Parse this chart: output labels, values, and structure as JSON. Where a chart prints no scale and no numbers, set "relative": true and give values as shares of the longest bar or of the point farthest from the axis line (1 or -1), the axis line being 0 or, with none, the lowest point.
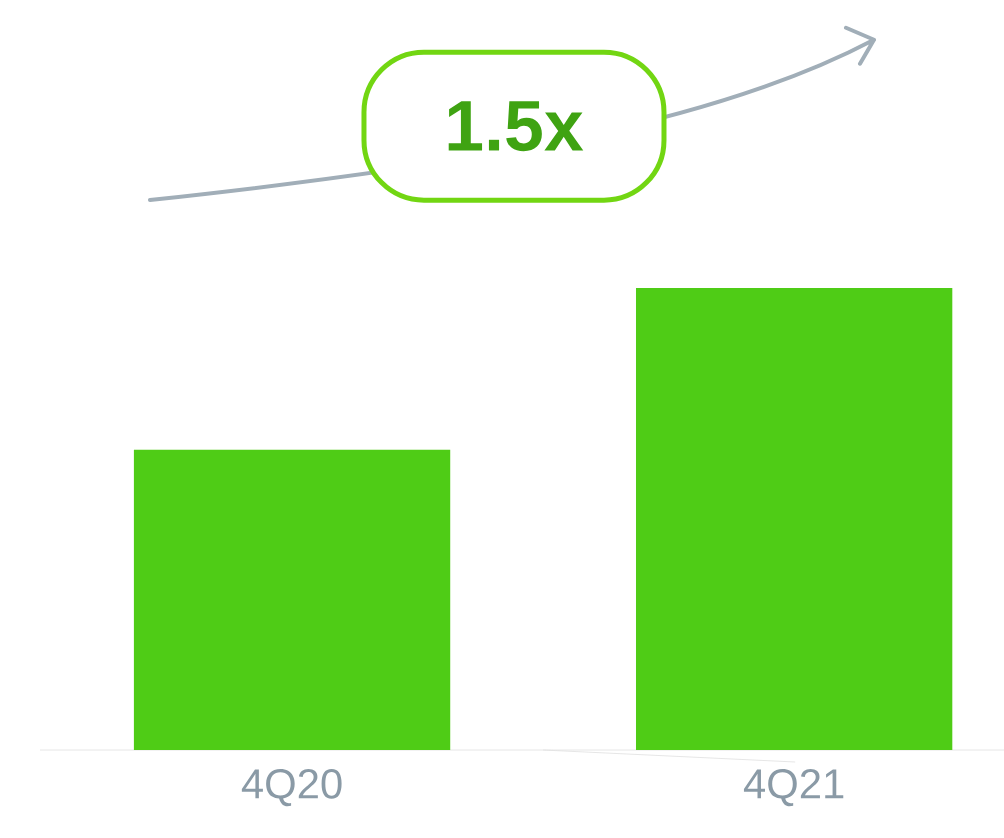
{
  "chart_data": {
    "type": "bar",
    "relative": true,
    "categories": [
      "4Q20",
      "4Q21"
    ],
    "values": [
      0.65,
      1
    ],
    "color": "#4fcc16",
    "annotations": [
      "1.5x"
    ]
  }
}
